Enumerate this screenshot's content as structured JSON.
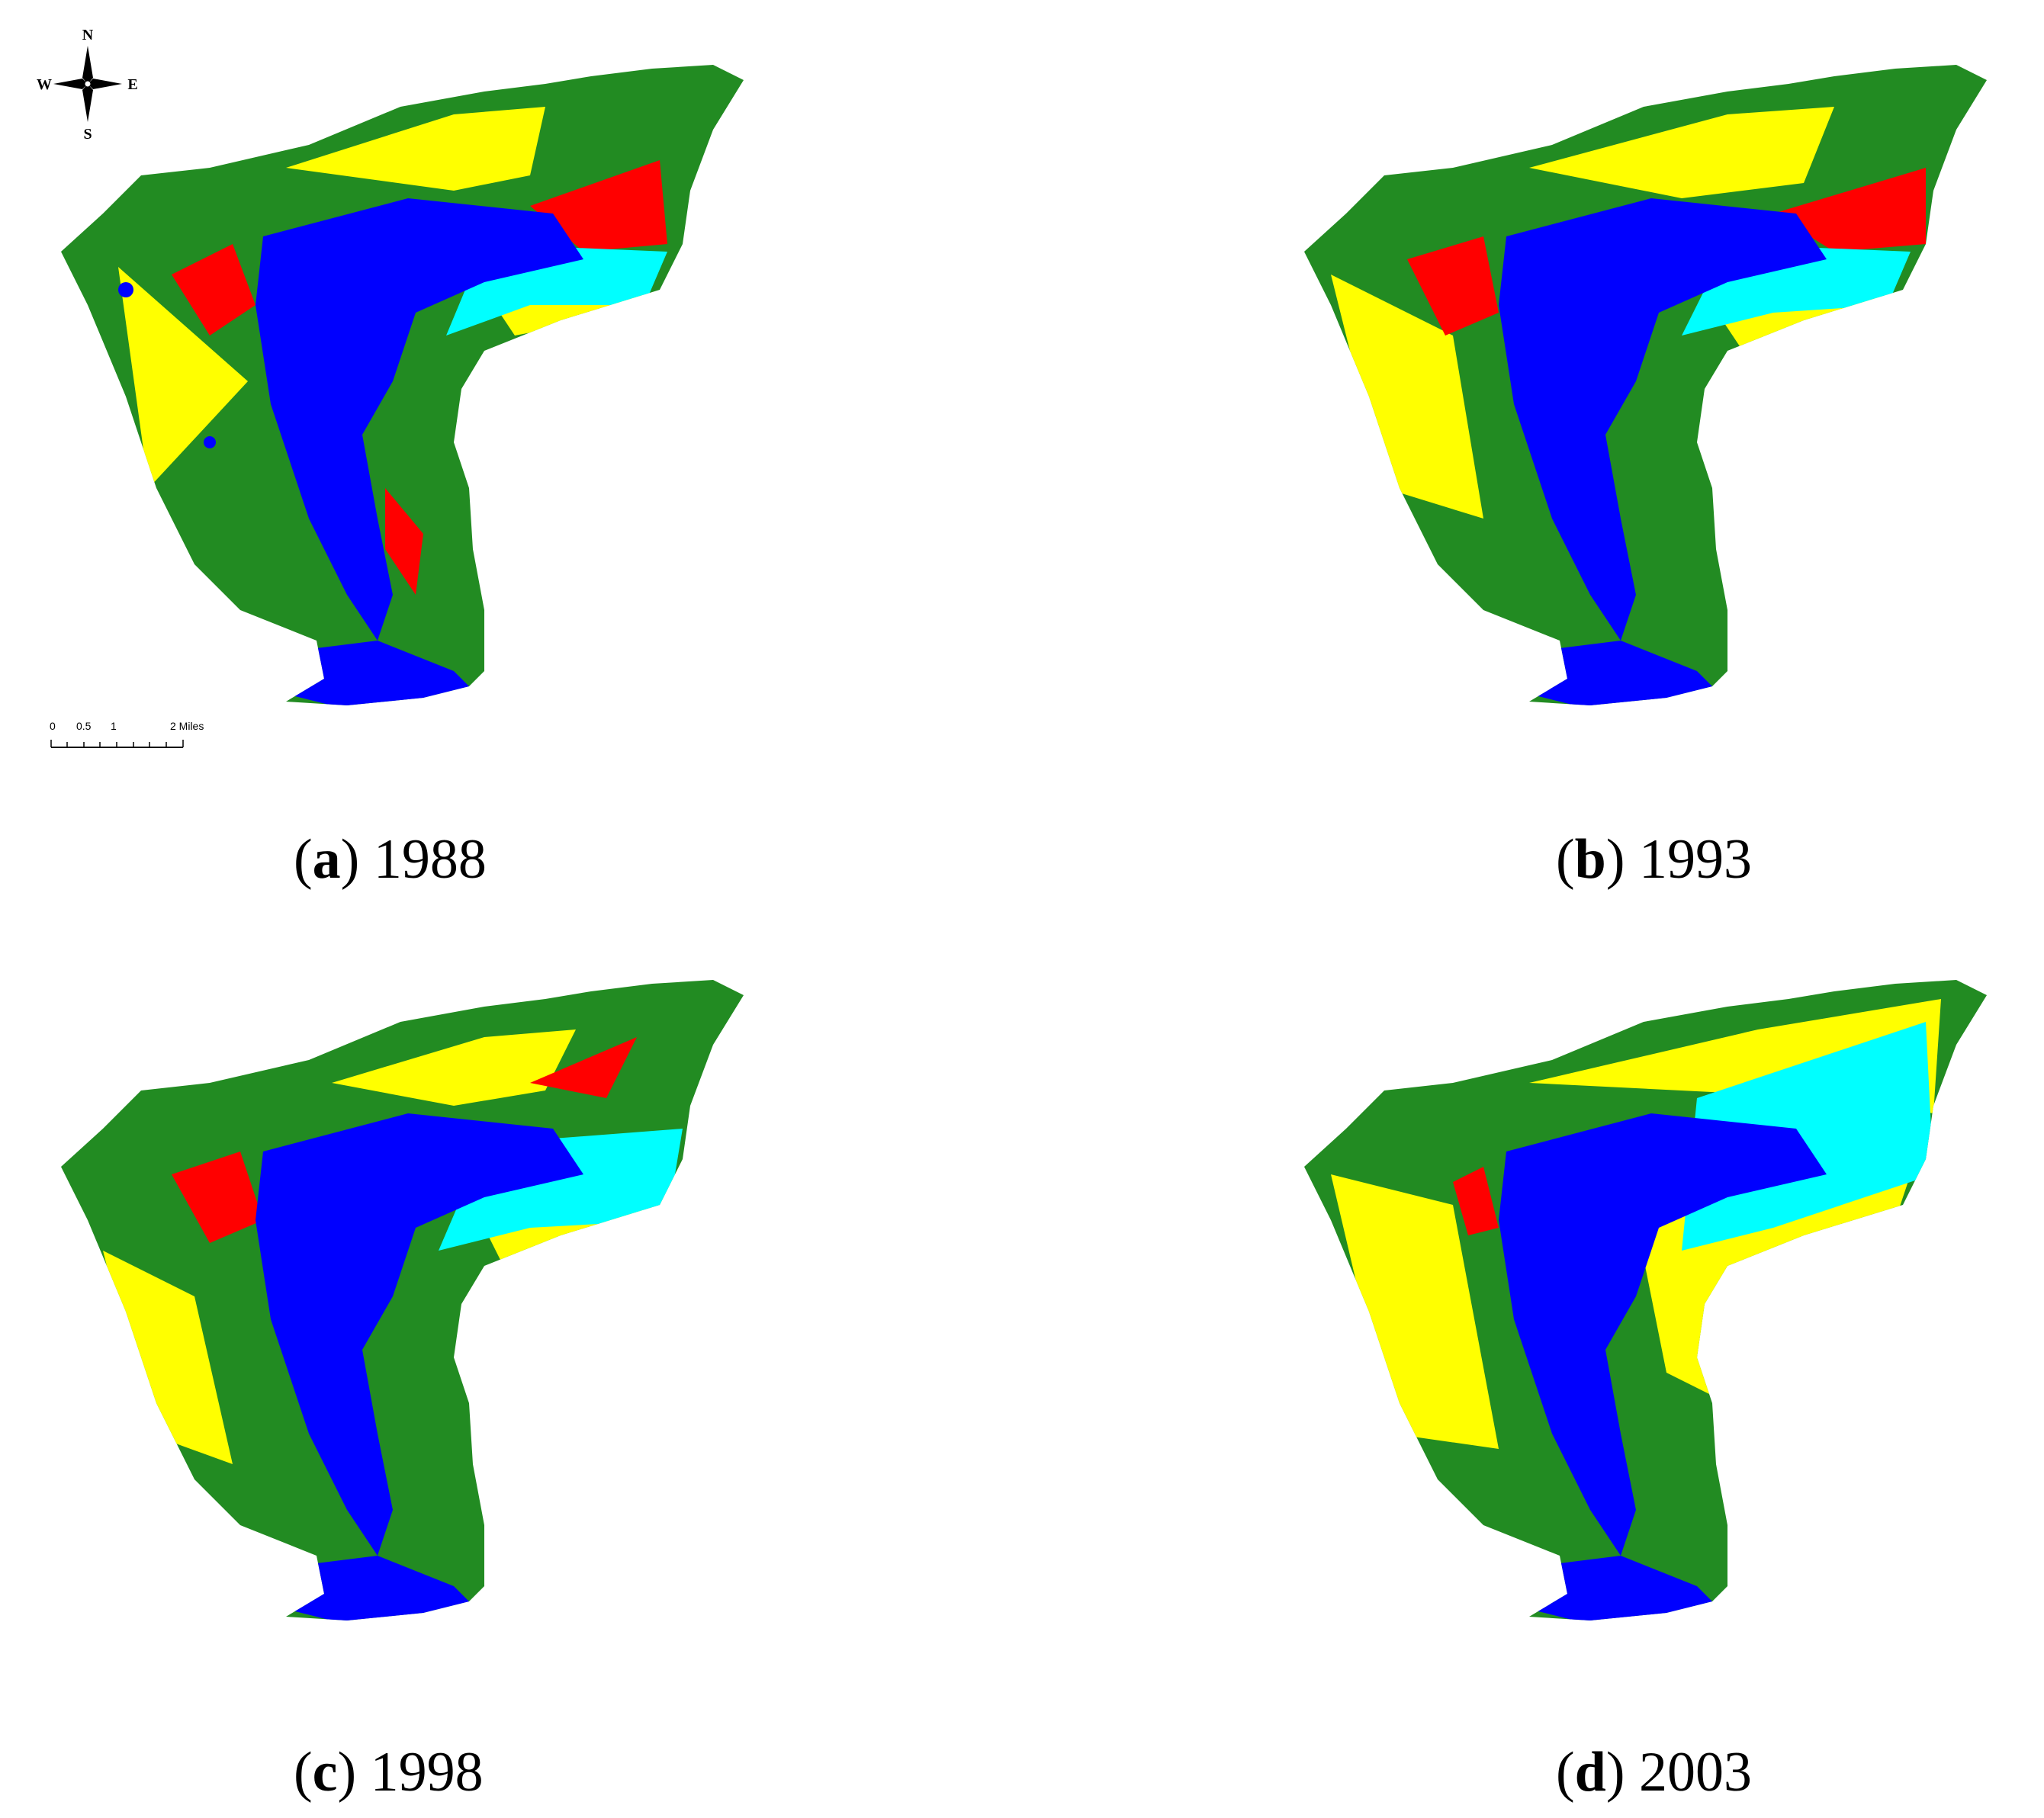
{
  "panels": [
    {
      "id": "a",
      "letter": "a",
      "year": "1988"
    },
    {
      "id": "b",
      "letter": "b",
      "year": "1993"
    },
    {
      "id": "c",
      "letter": "c",
      "year": "1998"
    },
    {
      "id": "d",
      "letter": "d",
      "year": "2003"
    }
  ],
  "compass": {
    "n": "N",
    "s": "S",
    "e": "E",
    "w": "W"
  },
  "scale": {
    "t0": "0",
    "t1": "0.5",
    "t2": "1",
    "t3": "2 Miles"
  },
  "colors": {
    "water": "#0000ff",
    "vegetation": "#228b22",
    "open_land": "#ffff00",
    "built_up": "#00ffff",
    "wetland": "#ff0000"
  }
}
